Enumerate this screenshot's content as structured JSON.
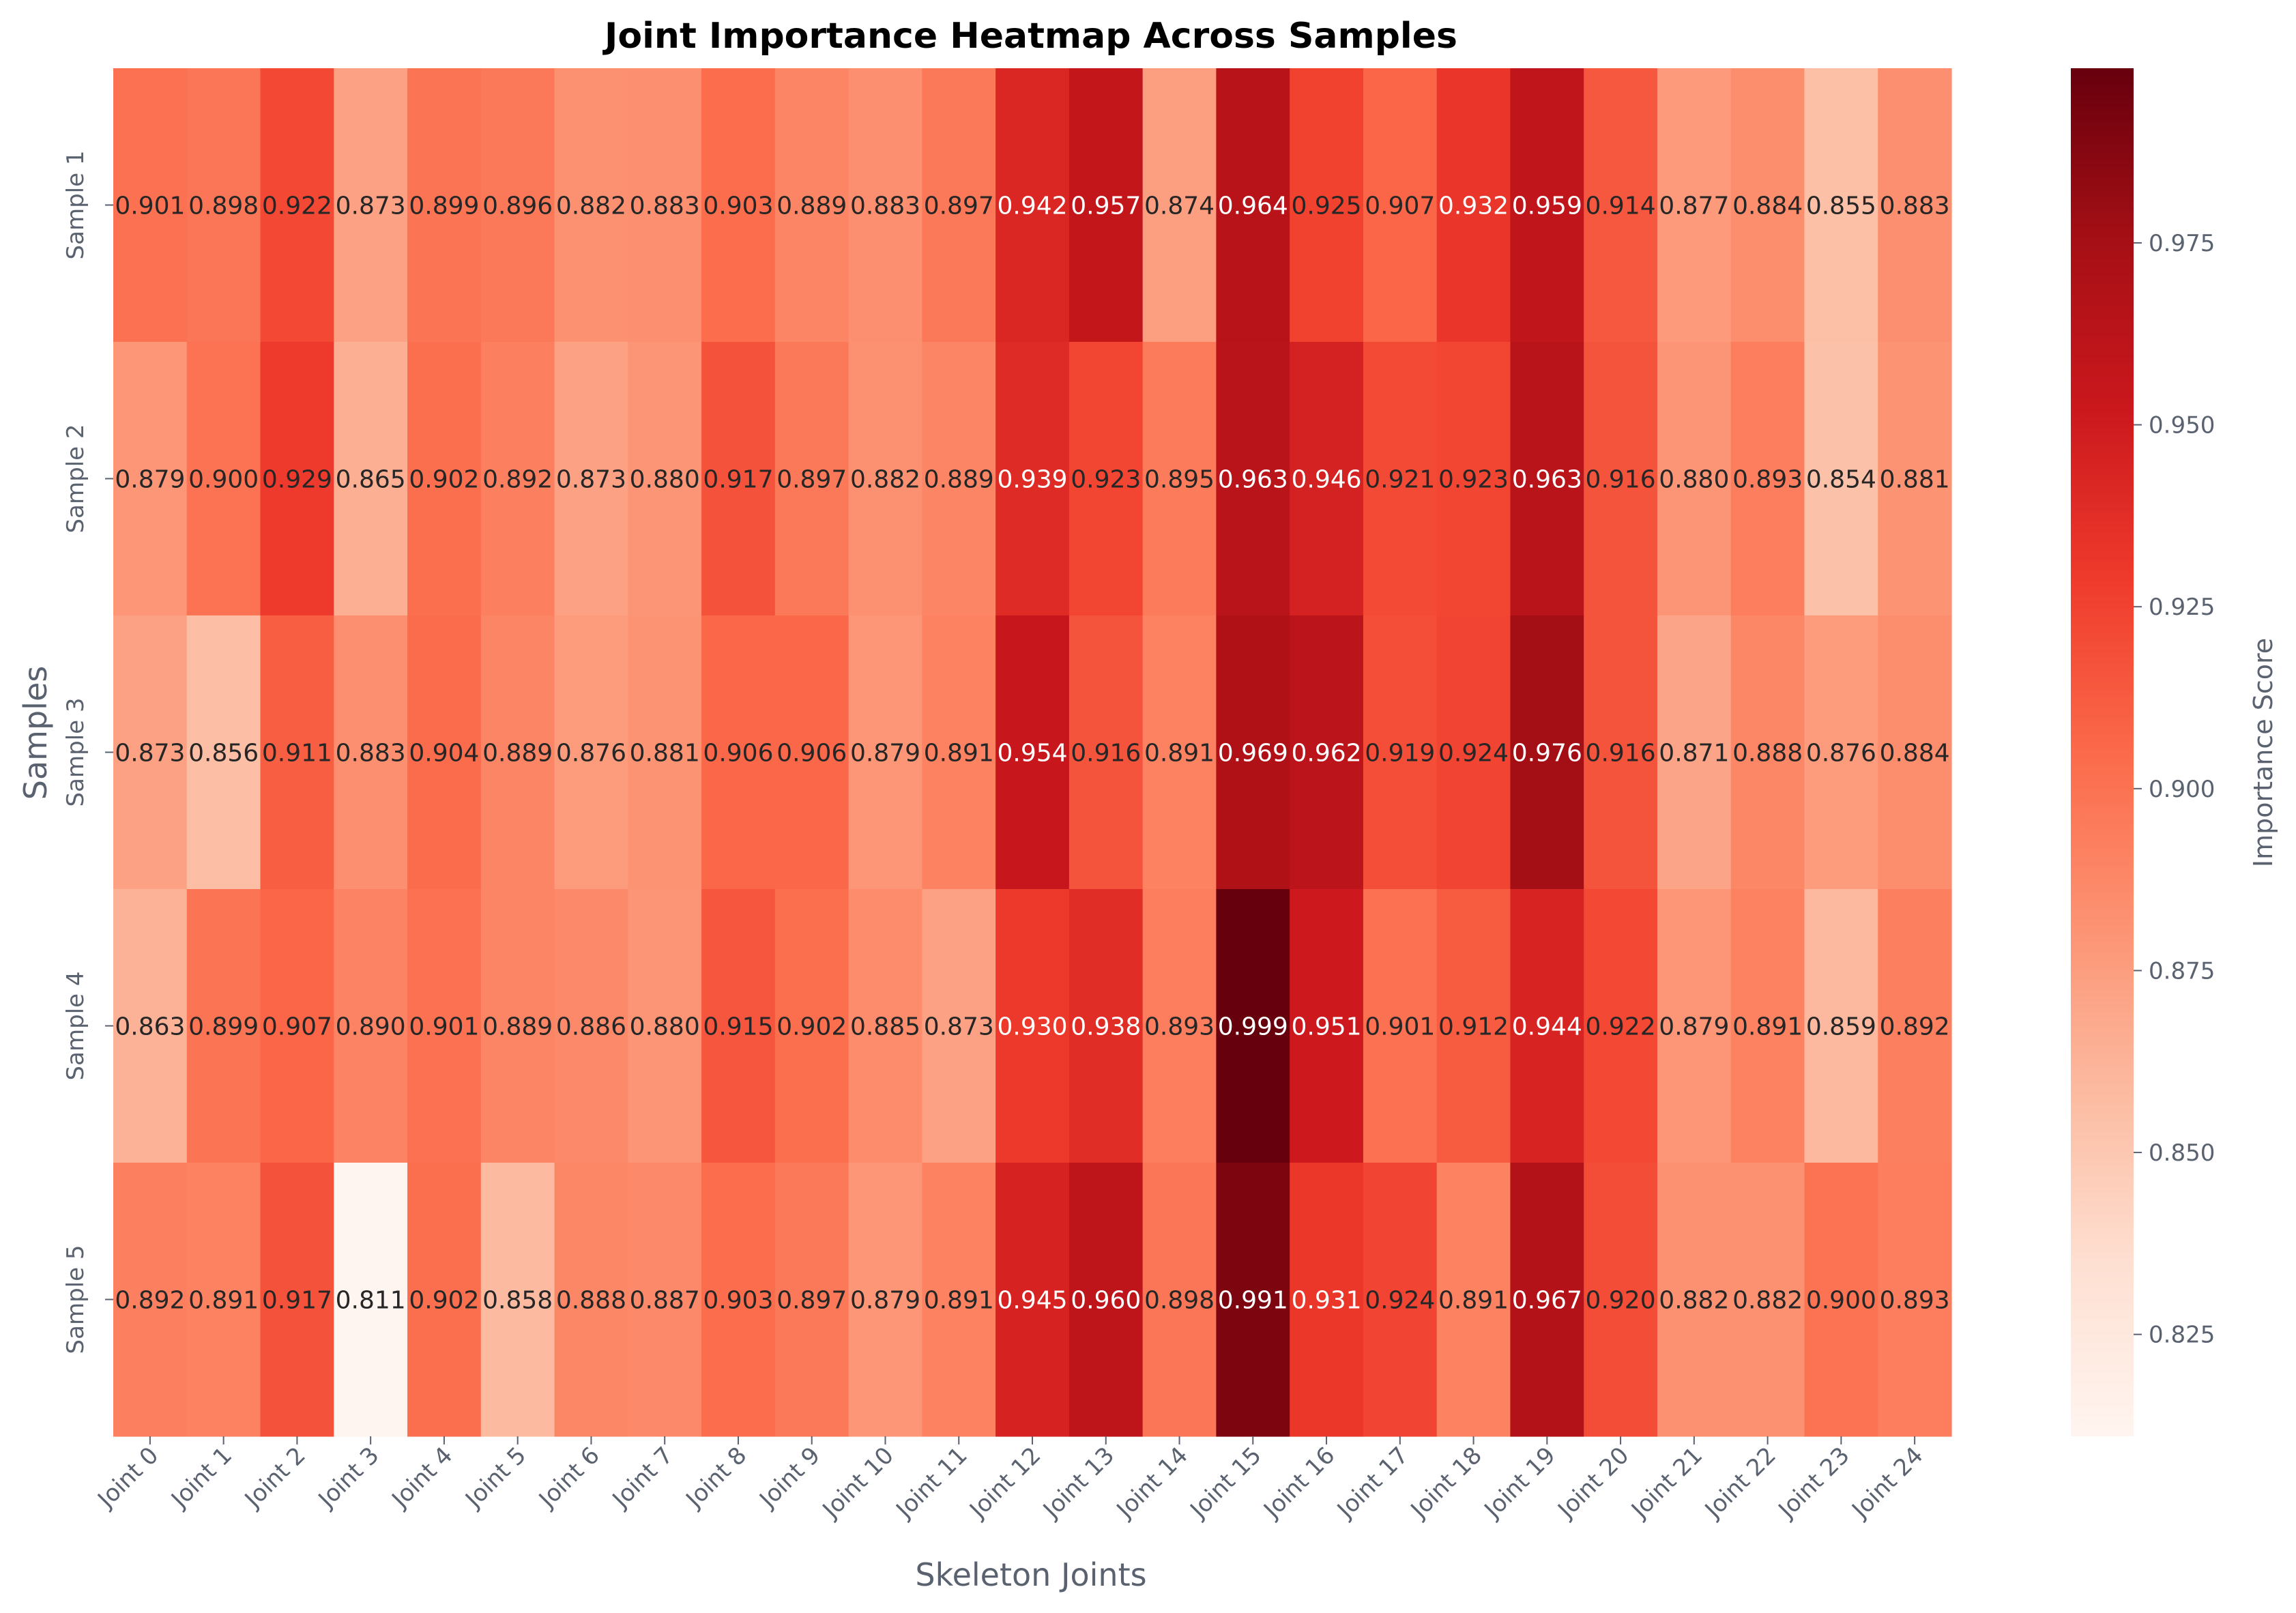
{
  "chart_data": {
    "type": "heatmap",
    "title": "Joint Importance Heatmap Across Samples",
    "xlabel": "Skeleton Joints",
    "ylabel": "Samples",
    "colorbar_label": "Importance Score",
    "colormap": "Reds",
    "color_range": [
      0.811,
      0.999
    ],
    "colorbar_ticks": [
      "0.825",
      "0.850",
      "0.875",
      "0.900",
      "0.925",
      "0.950",
      "0.975"
    ],
    "x_categories": [
      "Joint 0",
      "Joint 1",
      "Joint 2",
      "Joint 3",
      "Joint 4",
      "Joint 5",
      "Joint 6",
      "Joint 7",
      "Joint 8",
      "Joint 9",
      "Joint 10",
      "Joint 11",
      "Joint 12",
      "Joint 13",
      "Joint 14",
      "Joint 15",
      "Joint 16",
      "Joint 17",
      "Joint 18",
      "Joint 19",
      "Joint 20",
      "Joint 21",
      "Joint 22",
      "Joint 23",
      "Joint 24"
    ],
    "y_categories": [
      "Sample 1",
      "Sample 2",
      "Sample 3",
      "Sample 4",
      "Sample 5"
    ],
    "values": [
      [
        "0.901",
        "0.898",
        "0.922",
        "0.873",
        "0.899",
        "0.896",
        "0.882",
        "0.883",
        "0.903",
        "0.889",
        "0.883",
        "0.897",
        "0.942",
        "0.957",
        "0.874",
        "0.964",
        "0.925",
        "0.907",
        "0.932",
        "0.959",
        "0.914",
        "0.877",
        "0.884",
        "0.855",
        "0.883"
      ],
      [
        "0.879",
        "0.900",
        "0.929",
        "0.865",
        "0.902",
        "0.892",
        "0.873",
        "0.880",
        "0.917",
        "0.897",
        "0.882",
        "0.889",
        "0.939",
        "0.923",
        "0.895",
        "0.963",
        "0.946",
        "0.921",
        "0.923",
        "0.963",
        "0.916",
        "0.880",
        "0.893",
        "0.854",
        "0.881"
      ],
      [
        "0.873",
        "0.856",
        "0.911",
        "0.883",
        "0.904",
        "0.889",
        "0.876",
        "0.881",
        "0.906",
        "0.906",
        "0.879",
        "0.891",
        "0.954",
        "0.916",
        "0.891",
        "0.969",
        "0.962",
        "0.919",
        "0.924",
        "0.976",
        "0.916",
        "0.871",
        "0.888",
        "0.876",
        "0.884"
      ],
      [
        "0.863",
        "0.899",
        "0.907",
        "0.890",
        "0.901",
        "0.889",
        "0.886",
        "0.880",
        "0.915",
        "0.902",
        "0.885",
        "0.873",
        "0.930",
        "0.938",
        "0.893",
        "0.999",
        "0.951",
        "0.901",
        "0.912",
        "0.944",
        "0.922",
        "0.879",
        "0.891",
        "0.859",
        "0.892"
      ],
      [
        "0.892",
        "0.891",
        "0.917",
        "0.811",
        "0.902",
        "0.858",
        "0.888",
        "0.887",
        "0.903",
        "0.897",
        "0.879",
        "0.891",
        "0.945",
        "0.960",
        "0.898",
        "0.991",
        "0.931",
        "0.924",
        "0.891",
        "0.967",
        "0.920",
        "0.882",
        "0.882",
        "0.900",
        "0.893"
      ]
    ]
  }
}
